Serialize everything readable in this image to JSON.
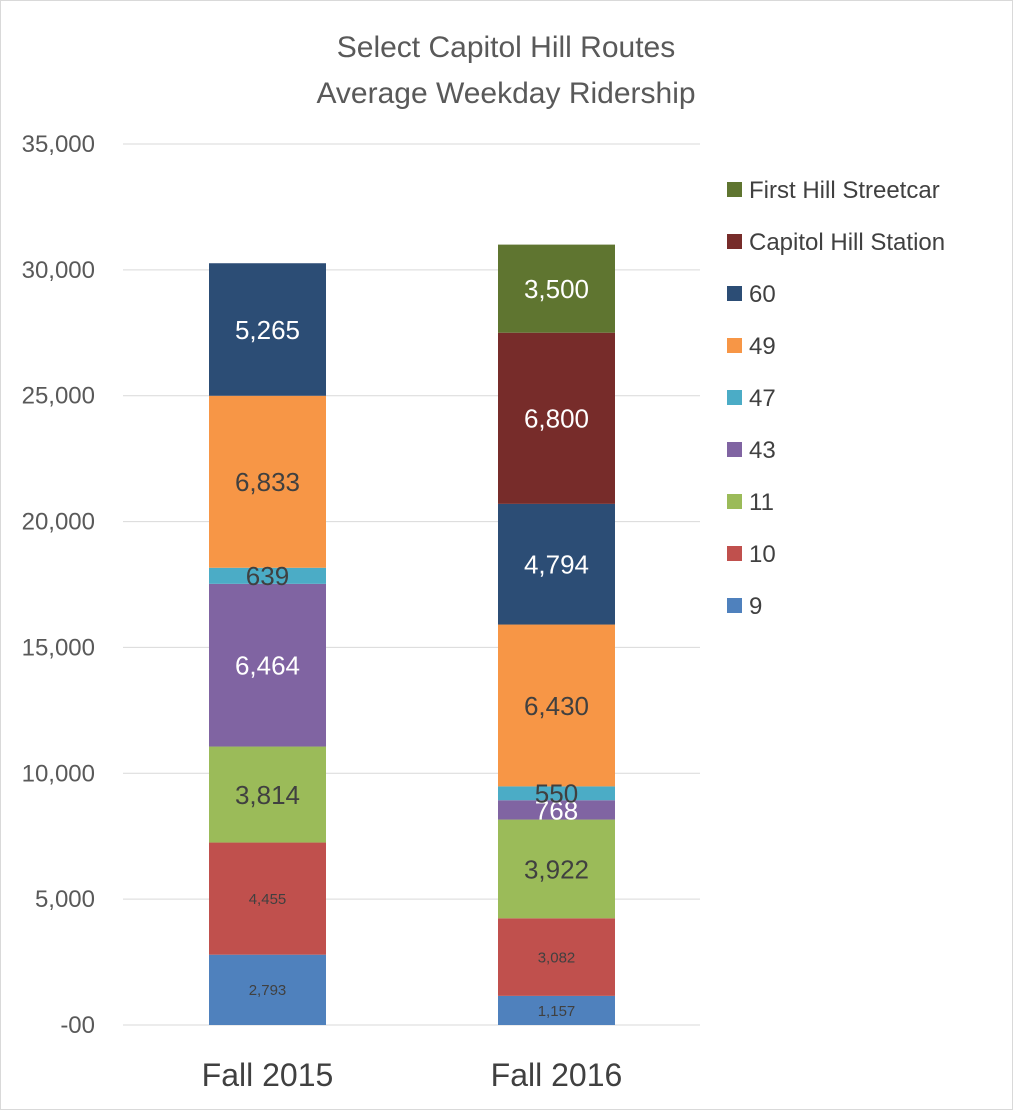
{
  "chart_data": {
    "type": "bar",
    "stacked": true,
    "title": "Select Capitol Hill Routes",
    "subtitle": "Average Weekday Ridership",
    "xlabel": "",
    "ylabel": "",
    "ylim": [
      0,
      35000
    ],
    "yticks": [
      0,
      5000,
      10000,
      15000,
      20000,
      25000,
      30000,
      35000
    ],
    "ytick_labels": [
      "-00",
      "5,000",
      "10,000",
      "15,000",
      "20,000",
      "25,000",
      "30,000",
      "35,000"
    ],
    "grid": true,
    "legend_position": "right",
    "categories": [
      "Fall 2015",
      "Fall 2016"
    ],
    "series": [
      {
        "name": "9",
        "color": "#4f81bd",
        "values": [
          2793,
          1157
        ],
        "labels": [
          "2,793",
          "1,157"
        ],
        "label_color": "#404040",
        "label_size": "small"
      },
      {
        "name": "10",
        "color": "#c0504d",
        "values": [
          4455,
          3082
        ],
        "labels": [
          "4,455",
          "3,082"
        ],
        "label_color": "#404040",
        "label_size": "small"
      },
      {
        "name": "11",
        "color": "#9bbb59",
        "values": [
          3814,
          3922
        ],
        "labels": [
          "3,814",
          "3,922"
        ],
        "label_color": "#404040",
        "label_size": "large"
      },
      {
        "name": "43",
        "color": "#8064a2",
        "values": [
          6464,
          768
        ],
        "labels": [
          "6,464",
          "768"
        ],
        "label_color": "#ffffff",
        "label_size": "large"
      },
      {
        "name": "47",
        "color": "#4bacc6",
        "values": [
          639,
          550
        ],
        "labels": [
          "639",
          "550"
        ],
        "label_color": "#404040",
        "label_size": "large"
      },
      {
        "name": "49",
        "color": "#f79646",
        "values": [
          6833,
          6430
        ],
        "labels": [
          "6,833",
          "6,430"
        ],
        "label_color": "#404040",
        "label_size": "large"
      },
      {
        "name": "60",
        "color": "#2c4d75",
        "values": [
          5265,
          4794
        ],
        "labels": [
          "5,265",
          "4,794"
        ],
        "label_color": "#ffffff",
        "label_size": "large"
      },
      {
        "name": "Capitol Hill Station",
        "color": "#772c2a",
        "values": [
          0,
          6800
        ],
        "labels": [
          "",
          "6,800"
        ],
        "label_color": "#ffffff",
        "label_size": "large"
      },
      {
        "name": "First Hill Streetcar",
        "color": "#5f7530",
        "values": [
          0,
          3500
        ],
        "labels": [
          "",
          "3,500"
        ],
        "label_color": "#ffffff",
        "label_size": "large"
      }
    ]
  }
}
